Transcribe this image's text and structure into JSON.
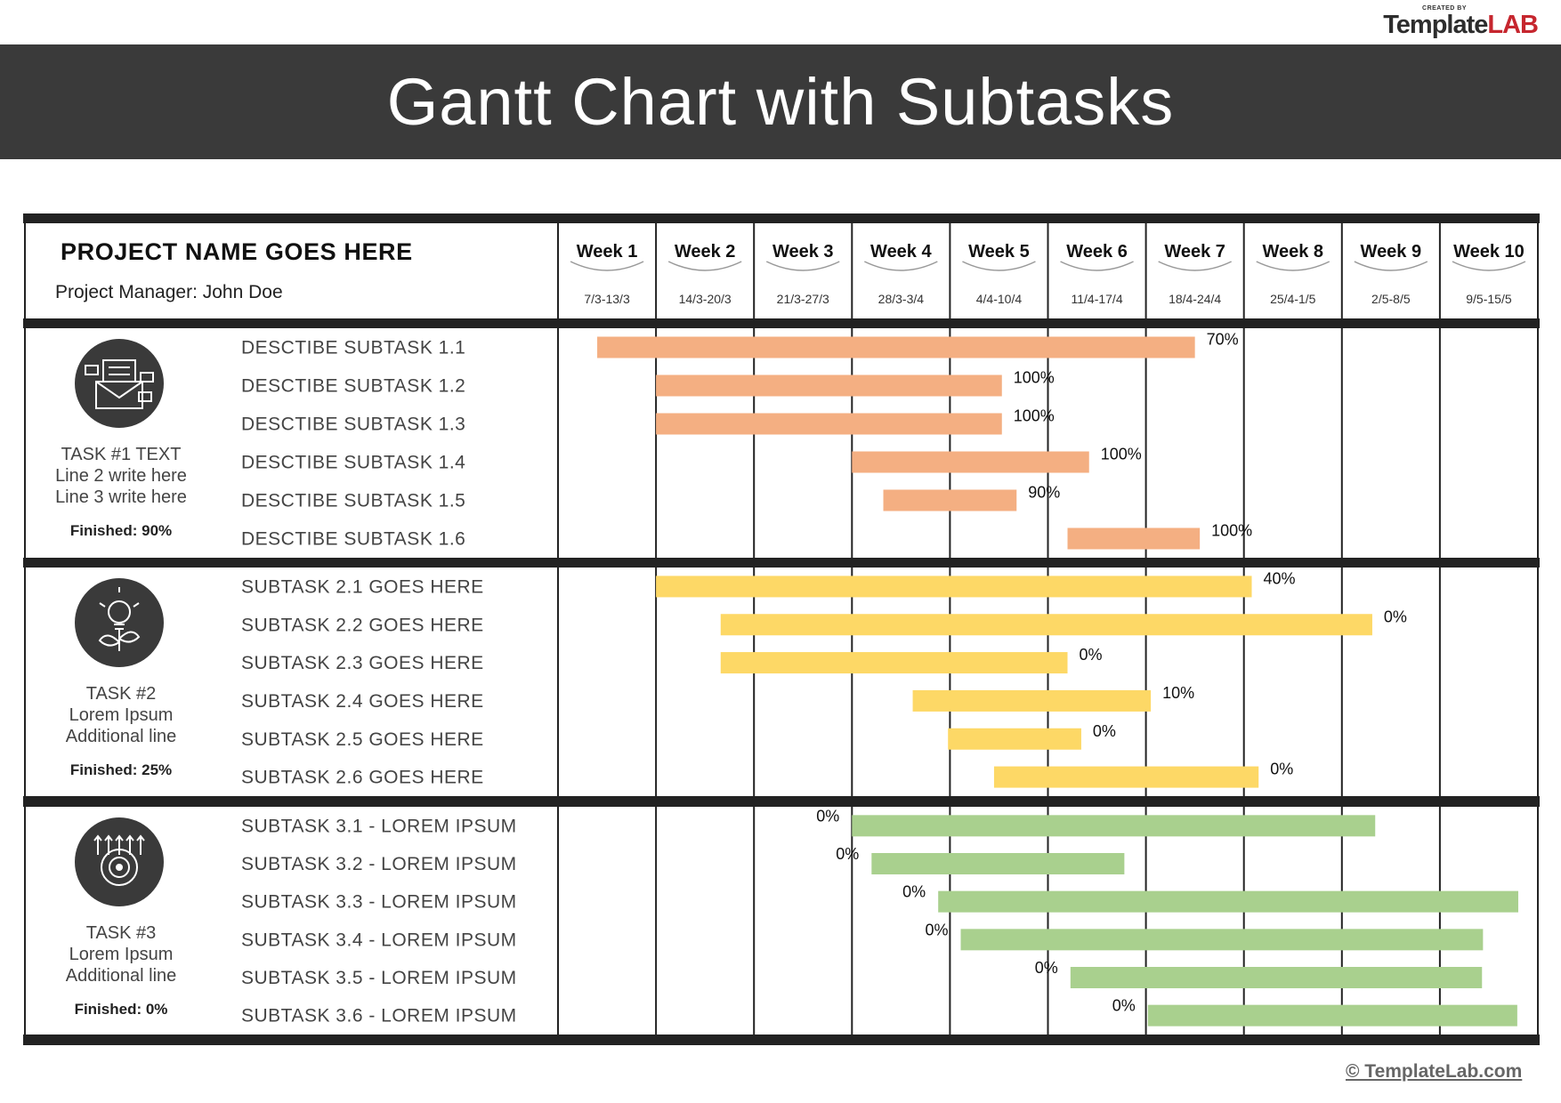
{
  "logo": {
    "small_text": "CREATED BY",
    "brand_a": "Template",
    "brand_b": "LAB"
  },
  "title": "Gantt Chart with Subtasks",
  "project": {
    "name": "PROJECT NAME GOES HERE",
    "manager": "Project Manager: John Doe"
  },
  "footer": "© TemplateLab.com",
  "colors": {
    "group1": "#F4AF82",
    "group2": "#FDD866",
    "group3": "#A9D08E",
    "banner": "#3A3A3A",
    "grid": "#222222"
  },
  "chart_data": {
    "type": "gantt",
    "title": "Gantt Chart with Subtasks",
    "weeks": [
      {
        "label": "Week 1",
        "dates": "7/3-13/3"
      },
      {
        "label": "Week 2",
        "dates": "14/3-20/3"
      },
      {
        "label": "Week 3",
        "dates": "21/3-27/3"
      },
      {
        "label": "Week 4",
        "dates": "28/3-3/4"
      },
      {
        "label": "Week 5",
        "dates": "4/4-10/4"
      },
      {
        "label": "Week 6",
        "dates": "11/4-17/4"
      },
      {
        "label": "Week 7",
        "dates": "18/4-24/4"
      },
      {
        "label": "Week 8",
        "dates": "25/4-1/5"
      },
      {
        "label": "Week 9",
        "dates": "2/5-8/5"
      },
      {
        "label": "Week 10",
        "dates": "9/5-15/5"
      }
    ],
    "groups": [
      {
        "icon": "envelope-icon",
        "color_key": "group1",
        "label_lines": [
          "TASK #1 TEXT",
          "Line 2 write here",
          "Line 3 write here"
        ],
        "finished": "Finished: 90%",
        "subtasks": [
          {
            "name": "DESCTIBE SUBTASK 1.1",
            "start": 0.4,
            "end": 6.5,
            "progress": "70%"
          },
          {
            "name": "DESCTIBE SUBTASK 1.2",
            "start": 1.0,
            "end": 4.53,
            "progress": "100%"
          },
          {
            "name": "DESCTIBE SUBTASK 1.3",
            "start": 1.0,
            "end": 4.53,
            "progress": "100%"
          },
          {
            "name": "DESCTIBE SUBTASK 1.4",
            "start": 3.0,
            "end": 5.42,
            "progress": "100%"
          },
          {
            "name": "DESCTIBE SUBTASK 1.5",
            "start": 3.32,
            "end": 4.68,
            "progress": "90%"
          },
          {
            "name": "DESCTIBE SUBTASK 1.6",
            "start": 5.2,
            "end": 6.55,
            "progress": "100%"
          }
        ]
      },
      {
        "icon": "lightbulb-plant-icon",
        "color_key": "group2",
        "label_lines": [
          "TASK #2",
          "Lorem Ipsum",
          "Additional line"
        ],
        "finished": "Finished: 25%",
        "subtasks": [
          {
            "name": "SUBTASK 2.1 GOES HERE",
            "start": 1.0,
            "end": 7.08,
            "progress": "40%"
          },
          {
            "name": "SUBTASK 2.2 GOES HERE",
            "start": 1.66,
            "end": 8.31,
            "progress": "0%"
          },
          {
            "name": "SUBTASK 2.3 GOES HERE",
            "start": 1.66,
            "end": 5.2,
            "progress": "0%"
          },
          {
            "name": "SUBTASK 2.4 GOES HERE",
            "start": 3.62,
            "end": 6.05,
            "progress": "10%"
          },
          {
            "name": "SUBTASK 2.5 GOES HERE",
            "start": 3.98,
            "end": 5.34,
            "progress": "0%"
          },
          {
            "name": "SUBTASK 2.6 GOES HERE",
            "start": 4.45,
            "end": 7.15,
            "progress": "0%"
          }
        ]
      },
      {
        "icon": "target-arrows-icon",
        "color_key": "group3",
        "label_lines": [
          "TASK #3",
          "Lorem Ipsum",
          "Additional line"
        ],
        "finished": "Finished: 0%",
        "subtasks": [
          {
            "name": "SUBTASK 3.1 - LOREM IPSUM",
            "start": 3.0,
            "end": 8.34,
            "progress": "0%"
          },
          {
            "name": "SUBTASK 3.2 - LOREM IPSUM",
            "start": 3.2,
            "end": 5.78,
            "progress": "0%"
          },
          {
            "name": "SUBTASK 3.3 - LOREM IPSUM",
            "start": 3.88,
            "end": 9.8,
            "progress": "0%"
          },
          {
            "name": "SUBTASK 3.4 - LOREM IPSUM",
            "start": 4.11,
            "end": 9.44,
            "progress": "0%"
          },
          {
            "name": "SUBTASK 3.5 - LOREM IPSUM",
            "start": 5.23,
            "end": 9.43,
            "progress": "0%"
          },
          {
            "name": "SUBTASK 3.6 - LOREM IPSUM",
            "start": 6.02,
            "end": 9.79,
            "progress": "0%"
          }
        ]
      }
    ]
  }
}
